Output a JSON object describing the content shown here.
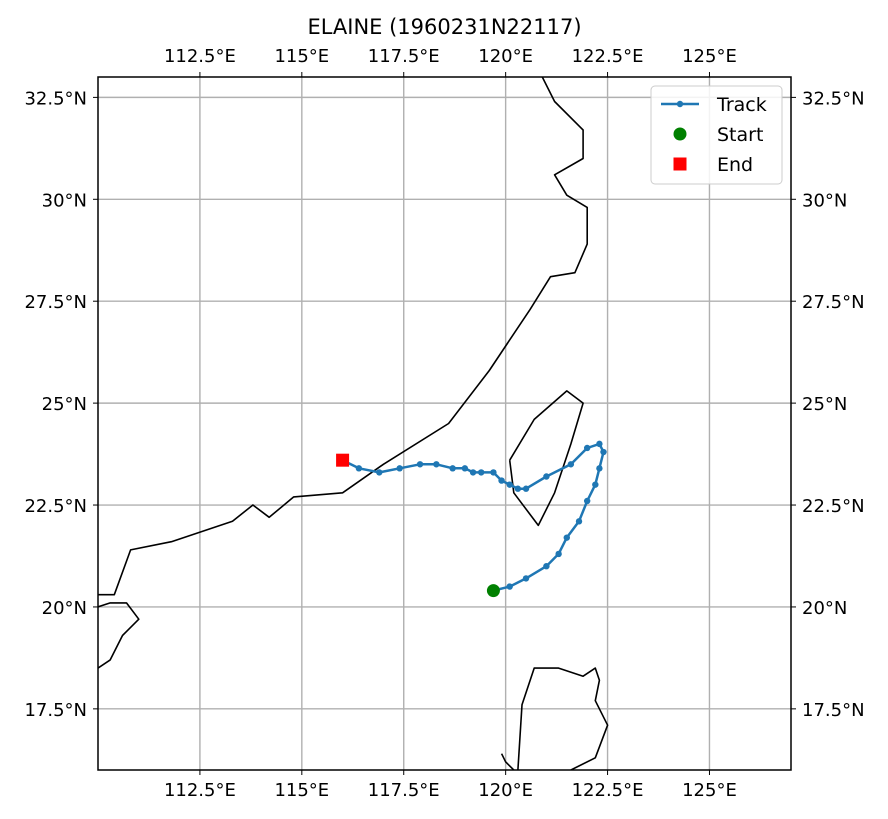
{
  "title": "ELAINE (1960231N22117)",
  "lon_ticks": [
    {
      "value": 112.5,
      "label": "112.5°E"
    },
    {
      "value": 115,
      "label": "115°E"
    },
    {
      "value": 117.5,
      "label": "117.5°E"
    },
    {
      "value": 120,
      "label": "120°E"
    },
    {
      "value": 122.5,
      "label": "122.5°E"
    },
    {
      "value": 125,
      "label": "125°E"
    }
  ],
  "lat_ticks": [
    {
      "value": 17.5,
      "label": "17.5°N"
    },
    {
      "value": 20,
      "label": "20°N"
    },
    {
      "value": 22.5,
      "label": "22.5°N"
    },
    {
      "value": 25,
      "label": "25°N"
    },
    {
      "value": 27.5,
      "label": "27.5°N"
    },
    {
      "value": 30,
      "label": "30°N"
    },
    {
      "value": 32.5,
      "label": "32.5°N"
    }
  ],
  "legend": {
    "track": "Track",
    "start": "Start",
    "end": "End"
  },
  "colors": {
    "track": "#1f77b4",
    "start": "#008000",
    "end": "#ff0000",
    "grid": "#b0b0b0",
    "coast": "#000000"
  },
  "chart_data": {
    "type": "line",
    "xlim": [
      110,
      127
    ],
    "ylim": [
      16,
      33
    ],
    "grid": true,
    "legend_position": "top-right",
    "track": [
      [
        119.7,
        20.4
      ],
      [
        120.1,
        20.5
      ],
      [
        120.5,
        20.7
      ],
      [
        121.0,
        21.0
      ],
      [
        121.3,
        21.3
      ],
      [
        121.5,
        21.7
      ],
      [
        121.8,
        22.1
      ],
      [
        122.0,
        22.6
      ],
      [
        122.2,
        23.0
      ],
      [
        122.3,
        23.4
      ],
      [
        122.4,
        23.8
      ],
      [
        122.3,
        24.0
      ],
      [
        122.0,
        23.9
      ],
      [
        121.6,
        23.5
      ],
      [
        121.0,
        23.2
      ],
      [
        120.5,
        22.9
      ],
      [
        120.3,
        22.9
      ],
      [
        120.1,
        23.0
      ],
      [
        119.9,
        23.1
      ],
      [
        119.7,
        23.3
      ],
      [
        119.4,
        23.3
      ],
      [
        119.2,
        23.3
      ],
      [
        119.0,
        23.4
      ],
      [
        118.7,
        23.4
      ],
      [
        118.3,
        23.5
      ],
      [
        117.9,
        23.5
      ],
      [
        117.4,
        23.4
      ],
      [
        116.9,
        23.3
      ],
      [
        116.4,
        23.4
      ],
      [
        116.0,
        23.6
      ]
    ],
    "start": [
      119.7,
      20.4
    ],
    "end": [
      116.0,
      23.6
    ],
    "coastlines": [
      [
        [
          110.0,
          20.3
        ],
        [
          110.4,
          20.3
        ],
        [
          110.8,
          21.4
        ],
        [
          111.8,
          21.6
        ],
        [
          113.3,
          22.1
        ],
        [
          113.8,
          22.5
        ],
        [
          114.2,
          22.2
        ],
        [
          114.8,
          22.7
        ],
        [
          116.0,
          22.8
        ],
        [
          117.0,
          23.5
        ],
        [
          118.6,
          24.5
        ],
        [
          119.6,
          25.8
        ],
        [
          120.6,
          27.3
        ],
        [
          121.1,
          28.1
        ],
        [
          121.7,
          28.2
        ],
        [
          122.0,
          28.9
        ],
        [
          122.0,
          29.8
        ],
        [
          121.5,
          30.1
        ],
        [
          121.2,
          30.6
        ],
        [
          121.9,
          31.0
        ],
        [
          121.9,
          31.7
        ],
        [
          121.2,
          32.4
        ],
        [
          120.9,
          33.0
        ]
      ],
      [
        [
          120.1,
          23.6
        ],
        [
          120.2,
          22.8
        ],
        [
          120.8,
          22.0
        ],
        [
          121.2,
          22.8
        ],
        [
          121.6,
          24.0
        ],
        [
          121.9,
          25.0
        ],
        [
          121.5,
          25.3
        ],
        [
          120.7,
          24.6
        ],
        [
          120.1,
          23.6
        ]
      ],
      [
        [
          110.0,
          20.0
        ],
        [
          110.3,
          20.1
        ],
        [
          110.7,
          20.1
        ],
        [
          111.0,
          19.7
        ],
        [
          110.6,
          19.3
        ],
        [
          110.3,
          18.7
        ],
        [
          110.0,
          18.5
        ]
      ],
      [
        [
          120.3,
          16.0
        ],
        [
          120.4,
          17.6
        ],
        [
          120.7,
          18.5
        ],
        [
          121.3,
          18.5
        ],
        [
          121.9,
          18.3
        ],
        [
          122.2,
          18.5
        ],
        [
          122.3,
          18.2
        ],
        [
          122.2,
          17.7
        ],
        [
          122.5,
          17.1
        ],
        [
          122.2,
          16.3
        ],
        [
          121.6,
          16.0
        ]
      ],
      [
        [
          119.9,
          16.4
        ],
        [
          120.0,
          16.2
        ],
        [
          120.1,
          16.1
        ],
        [
          120.2,
          16.0
        ]
      ]
    ]
  }
}
